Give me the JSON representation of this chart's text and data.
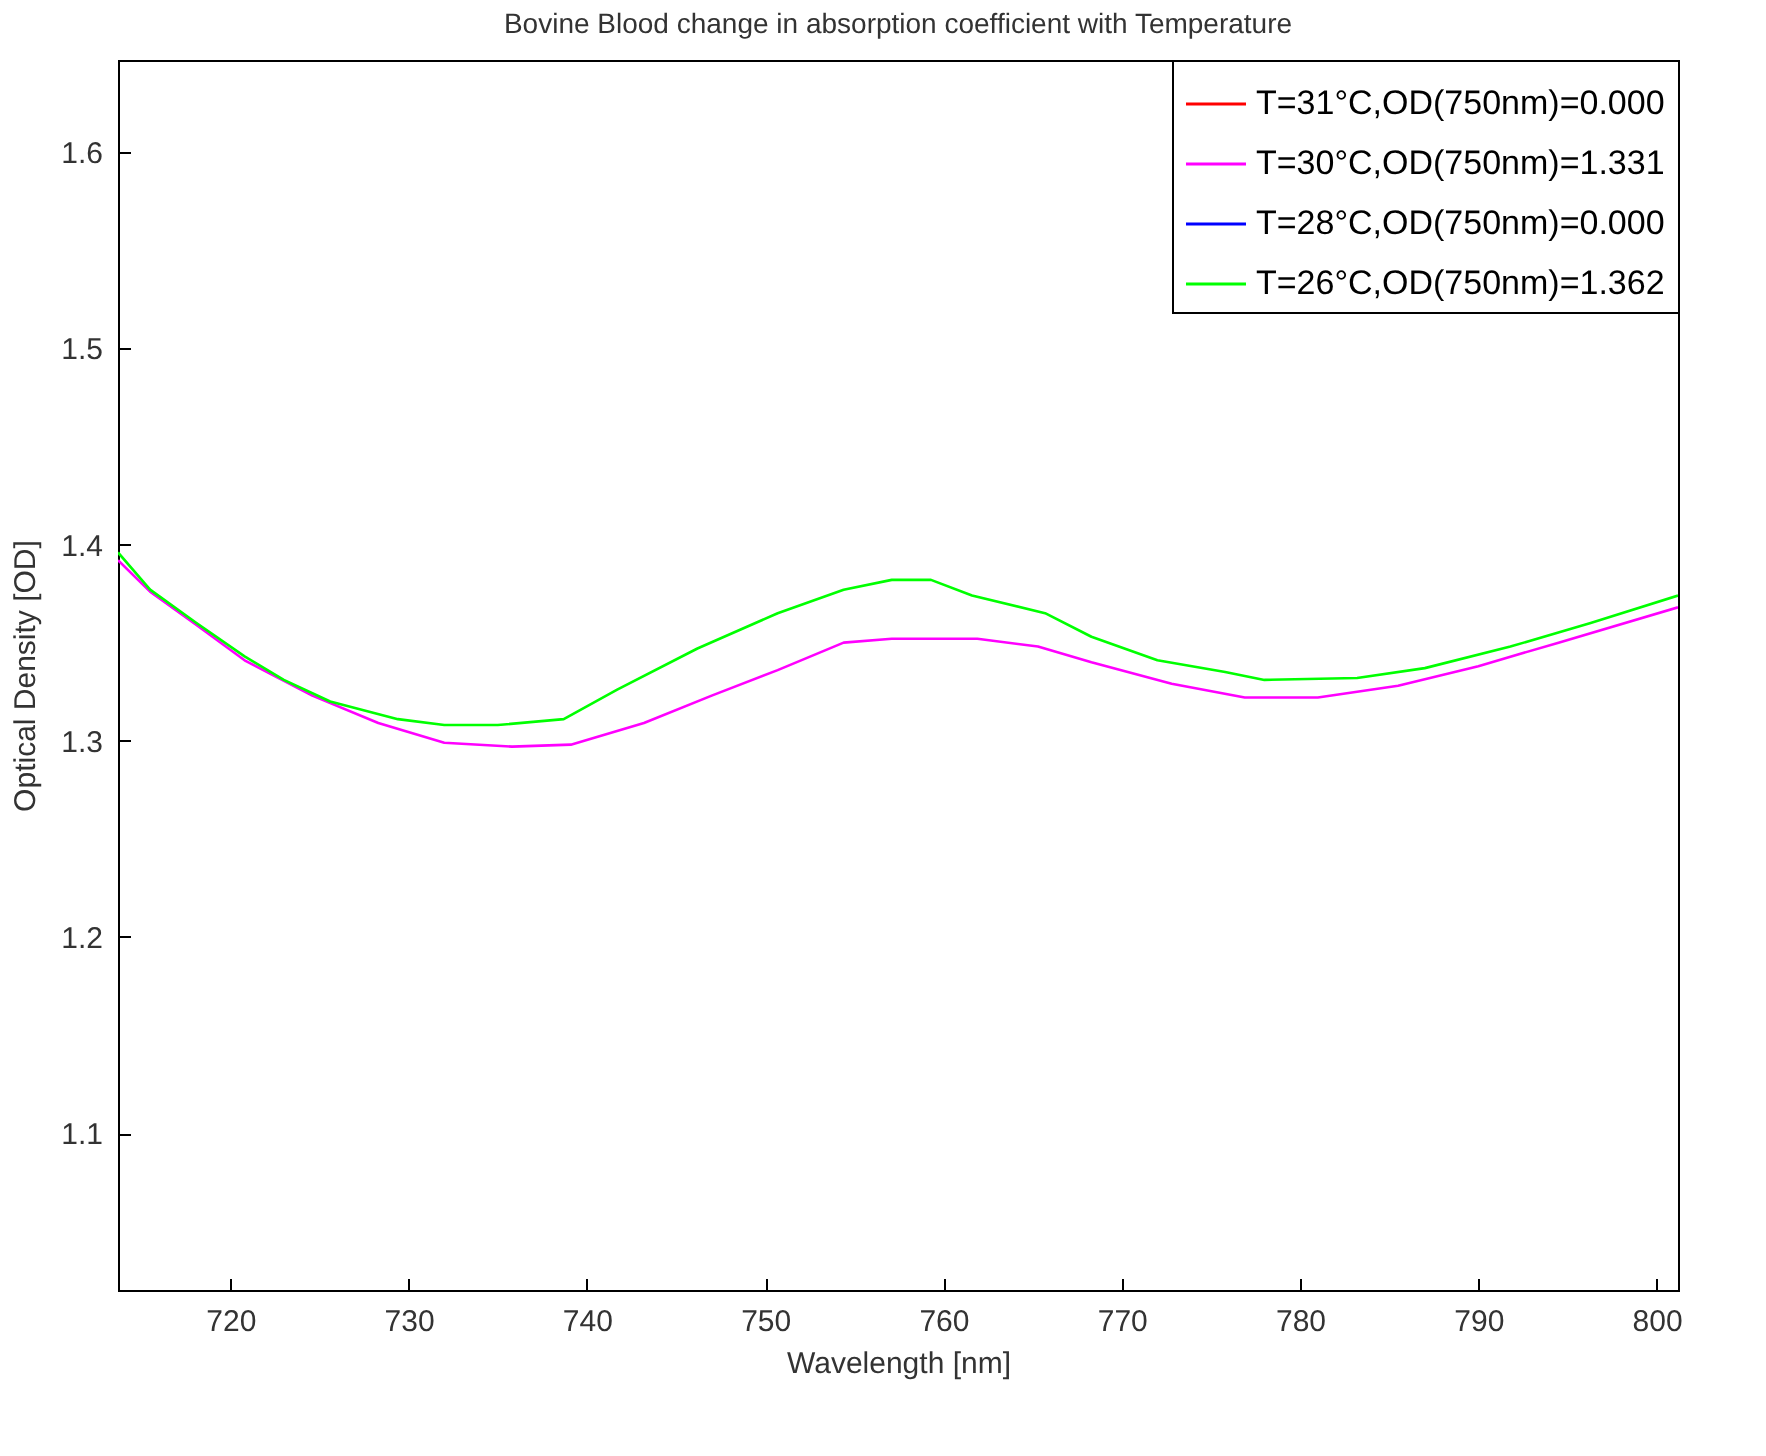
{
  "chart_data": {
    "type": "line",
    "title": "Bovine Blood change in absorption coefficient with Temperature",
    "xlabel": "Wavelength [nm]",
    "ylabel": "Optical Density [OD]",
    "xlim": [
      713.7,
      801.2
    ],
    "xticks": [
      720,
      730,
      740,
      750,
      760,
      770,
      780,
      790,
      800
    ],
    "ylim": [
      1.02,
      1.647
    ],
    "yticks": [
      1.1,
      1.2,
      1.3,
      1.4,
      1.5,
      1.6
    ],
    "grid": false,
    "legend": "top right",
    "marker": "none",
    "line_style": "solid",
    "series": [
      {
        "name": "T=31°C,OD(750nm)=0.000",
        "color": "#ff0000"
      },
      {
        "name": "T=30°C,OD(750nm)=1.331",
        "color": "#ff00ff",
        "x": [
          713.7,
          715.5,
          718.1,
          720.8,
          724.6,
          728.3,
          732.0,
          735.8,
          739.1,
          743.2,
          747.0,
          750.7,
          754.4,
          757.1,
          761.9,
          765.3,
          768.3,
          772.8,
          776.9,
          781.0,
          785.5,
          790.0,
          794.5,
          801.2
        ],
        "values": [
          1.392,
          1.376,
          1.359,
          1.341,
          1.323,
          1.309,
          1.299,
          1.297,
          1.298,
          1.309,
          1.323,
          1.336,
          1.35,
          1.352,
          1.352,
          1.348,
          1.34,
          1.329,
          1.322,
          1.322,
          1.328,
          1.338,
          1.35,
          1.368
        ]
      },
      {
        "name": "T=28°C,OD(750nm)=0.000",
        "color": "#0000ff"
      },
      {
        "name": "T=26°C,OD(750nm)=1.362",
        "color": "#00ff00",
        "x": [
          713.7,
          715.5,
          718.1,
          720.8,
          723.0,
          725.6,
          729.4,
          732.0,
          735.0,
          738.7,
          741.7,
          746.2,
          750.7,
          754.4,
          757.1,
          759.3,
          761.6,
          765.7,
          768.3,
          772.0,
          775.8,
          778.0,
          783.2,
          787.0,
          791.8,
          796.3,
          801.2
        ],
        "values": [
          1.396,
          1.377,
          1.36,
          1.343,
          1.331,
          1.32,
          1.311,
          1.308,
          1.308,
          1.311,
          1.326,
          1.347,
          1.365,
          1.377,
          1.382,
          1.382,
          1.374,
          1.365,
          1.353,
          1.341,
          1.335,
          1.331,
          1.332,
          1.337,
          1.348,
          1.36,
          1.374
        ]
      }
    ]
  }
}
